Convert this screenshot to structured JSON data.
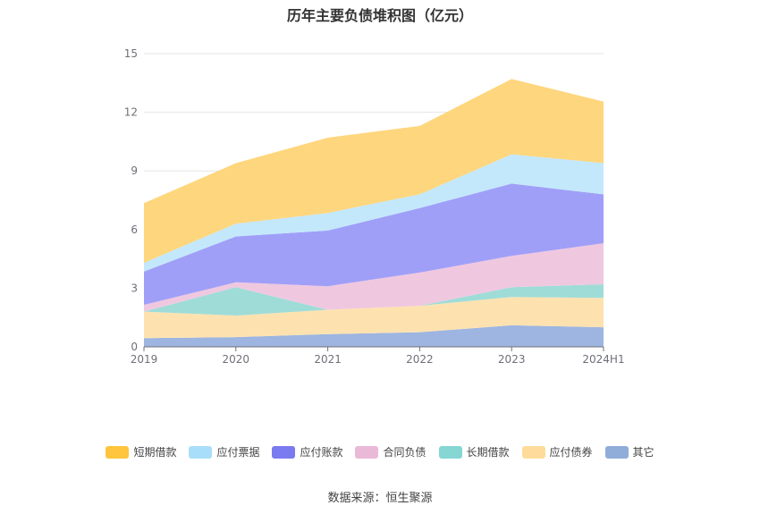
{
  "chart_data": {
    "type": "area",
    "stacked": true,
    "title": "历年主要负债堆积图（亿元）",
    "source": "数据来源：恒生聚源",
    "categories": [
      "2019",
      "2020",
      "2021",
      "2022",
      "2023",
      "2024H1"
    ],
    "ylim": [
      0,
      15
    ],
    "yticks": [
      0,
      3,
      6,
      9,
      12,
      15
    ],
    "grid": true,
    "legend_position": "bottom",
    "series": [
      {
        "name": "其它",
        "color": "#9db5e0",
        "values": [
          0.45,
          0.5,
          0.65,
          0.75,
          1.1,
          1.0
        ]
      },
      {
        "name": "应付债券",
        "color": "#fde2b0",
        "values": [
          1.35,
          1.1,
          1.25,
          1.35,
          1.45,
          1.5
        ]
      },
      {
        "name": "长期借款",
        "color": "#9fdcd8",
        "values": [
          0.0,
          1.45,
          0.0,
          0.0,
          0.5,
          0.7
        ]
      },
      {
        "name": "合同负债",
        "color": "#efc8e0",
        "values": [
          0.35,
          0.25,
          1.2,
          1.7,
          1.6,
          2.1
        ]
      },
      {
        "name": "应付账款",
        "color": "#a09ff8",
        "values": [
          1.7,
          2.35,
          2.85,
          3.3,
          3.7,
          2.5
        ]
      },
      {
        "name": "应付票据",
        "color": "#c3e8fb",
        "values": [
          0.45,
          0.65,
          0.9,
          0.7,
          1.5,
          1.6
        ]
      },
      {
        "name": "短期借款",
        "color": "#fed67d",
        "values": [
          3.05,
          3.1,
          3.85,
          3.5,
          3.85,
          3.15
        ]
      }
    ],
    "legend_order": [
      "短期借款",
      "应付票据",
      "应付账款",
      "合同负债",
      "长期借款",
      "应付债券",
      "其它"
    ],
    "legend_colors": {
      "短期借款": "#fec53d",
      "应付票据": "#a9defb",
      "应付账款": "#7b7bf0",
      "合同负债": "#ebb9d8",
      "长期借款": "#86d6d3",
      "应付债券": "#fedb9b",
      "其它": "#90acd9"
    }
  }
}
